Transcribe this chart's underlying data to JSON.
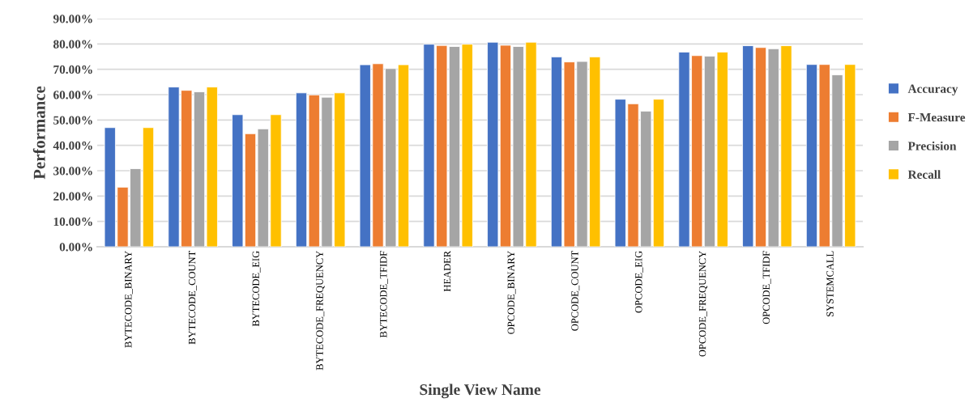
{
  "chart_data": {
    "type": "bar",
    "xlabel": "Single View Name",
    "ylabel": "Performance",
    "categories": [
      "BYTECODE_BINARY",
      "BYTECODE_COUNT",
      "BYTECODE_EIG",
      "BYTECODE_FREQUENCY",
      "BYTECODE_TFIDF",
      "HEADER",
      "OPCODE_BINARY",
      "OPCODE_COUNT",
      "OPCODE_EIG",
      "OPCODE_FREQUENCY",
      "OPCODE_TFIDF",
      "SYSTEMCALL"
    ],
    "series": [
      {
        "name": "Accuracy",
        "color": "#4472c4",
        "values": [
          47.0,
          63.0,
          52.1,
          60.7,
          71.8,
          79.9,
          80.7,
          74.9,
          58.2,
          76.8,
          79.3,
          71.9
        ]
      },
      {
        "name": "F-Measure",
        "color": "#ed7d31",
        "values": [
          23.5,
          61.7,
          44.6,
          59.9,
          72.2,
          79.4,
          79.5,
          72.9,
          56.4,
          75.4,
          78.6,
          71.9
        ]
      },
      {
        "name": "Precision",
        "color": "#a5a5a5",
        "values": [
          30.8,
          61.1,
          46.5,
          59.0,
          70.3,
          79.0,
          79.0,
          73.1,
          53.5,
          75.2,
          78.1,
          67.8
        ]
      },
      {
        "name": "Recall",
        "color": "#ffc000",
        "values": [
          47.0,
          63.0,
          52.1,
          60.7,
          71.8,
          79.9,
          80.7,
          74.9,
          58.2,
          76.8,
          79.3,
          71.9
        ]
      }
    ],
    "ylim": [
      0,
      90
    ],
    "yticks": [
      {
        "value": 0,
        "label": "0.00%"
      },
      {
        "value": 10,
        "label": "10.00%"
      },
      {
        "value": 20,
        "label": "20.00%"
      },
      {
        "value": 30,
        "label": "30.00%"
      },
      {
        "value": 40,
        "label": "40.00%"
      },
      {
        "value": 50,
        "label": "50.00%"
      },
      {
        "value": 60,
        "label": "60.00%"
      },
      {
        "value": 70,
        "label": "70.00%"
      },
      {
        "value": 80,
        "label": "80.00%"
      },
      {
        "value": 90,
        "label": "90.00%"
      }
    ],
    "grid": "y",
    "legend": "right"
  }
}
